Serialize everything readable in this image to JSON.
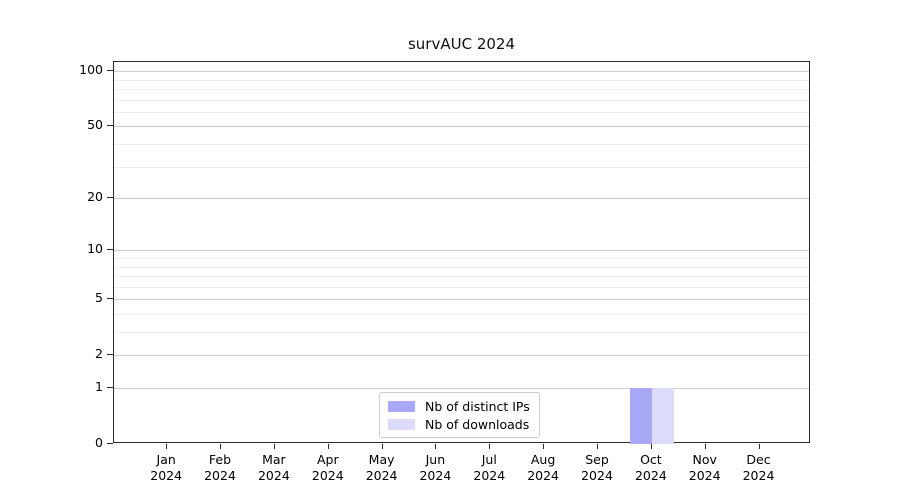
{
  "chart_data": {
    "type": "bar",
    "title": "survAUC 2024",
    "categories": [
      "Jan 2024",
      "Feb 2024",
      "Mar 2024",
      "Apr 2024",
      "May 2024",
      "Jun 2024",
      "Jul 2024",
      "Aug 2024",
      "Sep 2024",
      "Oct 2024",
      "Nov 2024",
      "Dec 2024"
    ],
    "series": [
      {
        "name": "Nb of distinct IPs",
        "color": "#a8a8f6",
        "values": [
          0,
          0,
          0,
          0,
          0,
          0,
          0,
          0,
          0,
          1,
          0,
          0
        ]
      },
      {
        "name": "Nb of downloads",
        "color": "#dcdcfa",
        "values": [
          0,
          0,
          0,
          0,
          0,
          0,
          0,
          0,
          0,
          1,
          0,
          0
        ]
      }
    ],
    "xlabel": "",
    "ylabel": "",
    "y_axis": {
      "scale": "log1p",
      "tick_values": [
        100,
        50,
        20,
        10,
        5,
        2,
        1,
        0
      ],
      "tick_labels": [
        "100",
        "50",
        "20",
        "10",
        "5",
        "2",
        "1",
        "0"
      ],
      "minor_gridline_values": [
        90,
        80,
        70,
        60,
        40,
        30,
        9,
        8,
        7,
        6,
        4,
        3
      ],
      "range": [
        0,
        112
      ]
    },
    "grid": "on",
    "legend_position": "bottom-center-inside"
  }
}
